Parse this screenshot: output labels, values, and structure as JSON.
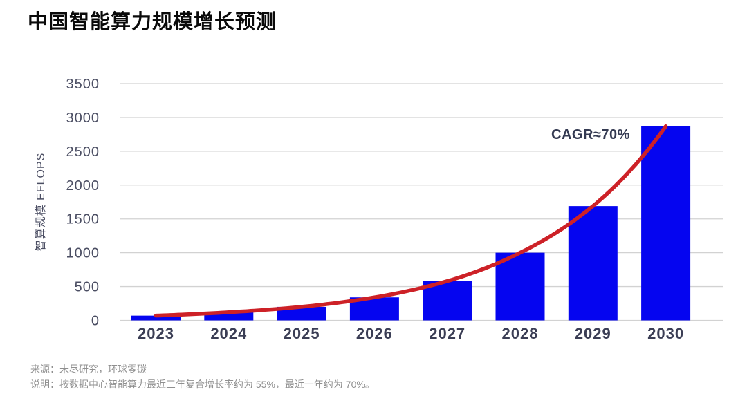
{
  "title": "中国智能算力规模增长预测",
  "chart_data": {
    "type": "bar",
    "title": "中国智能算力规模增长预测",
    "categories": [
      "2023",
      "2024",
      "2025",
      "2026",
      "2027",
      "2028",
      "2029",
      "2030"
    ],
    "values": [
      70,
      120,
      200,
      340,
      580,
      1000,
      1690,
      2870
    ],
    "ylabel": "智算规模 EFLOPS",
    "xlabel": "",
    "ylim": [
      0,
      3500
    ],
    "yticks": [
      0,
      500,
      1000,
      1500,
      2000,
      2500,
      3000,
      3500
    ],
    "grid": "horizontal",
    "legend": "none",
    "trend": {
      "type": "exponential",
      "label": "CAGR≈70%"
    },
    "colors": {
      "bar": "#0505f0",
      "trend_line": "#cd2127",
      "gridline": "#d2d2d2",
      "tick_text": "#4b4e63",
      "xlabel_text": "#3b3e55",
      "title_text": "#0a0a0a",
      "annotation_text": "#343a52",
      "footer_text": "#8f8f8f"
    }
  },
  "footer": {
    "source": "来源：未尽研究，环球零碳",
    "note": "说明：按数据中心智能算力最近三年复合增长率约为 55%，最近一年约为 70%。"
  }
}
